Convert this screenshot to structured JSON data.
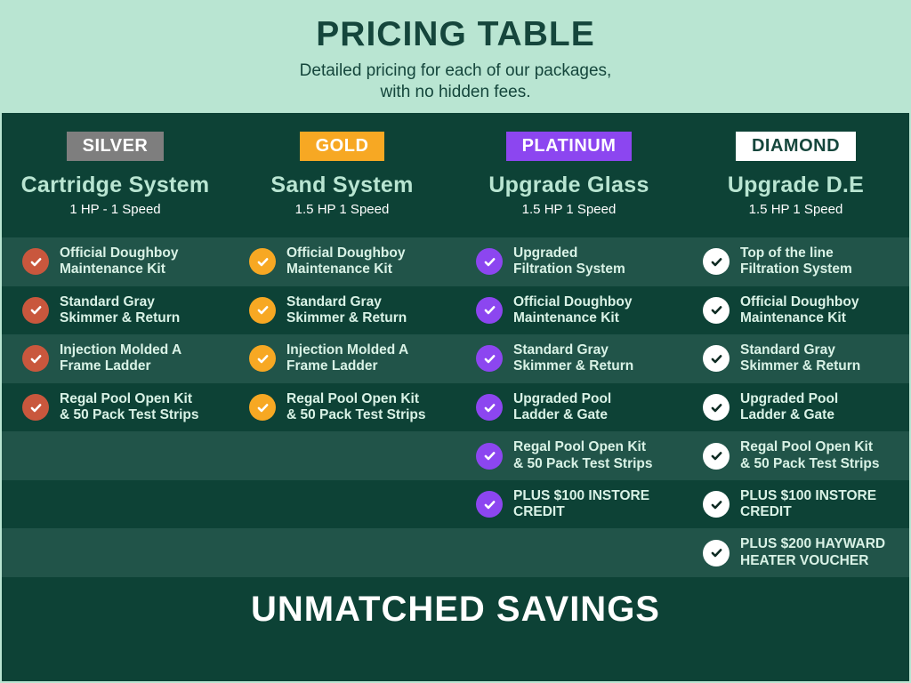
{
  "header": {
    "title": "PRICING TABLE",
    "subtitle": "Detailed pricing for each of our packages,\nwith no hidden fees."
  },
  "colors": {
    "mint": "#b9e5d2",
    "panel": "#0d4236",
    "stripe": "#215449",
    "heading": "#15463c",
    "feature-text": "#d9f2e6"
  },
  "columns": [
    {
      "badge": "SILVER",
      "badge_bg": "#7e7e7e",
      "badge_color": "#ffffff",
      "title": "Cartridge System",
      "subtitle": "1 HP - 1 Speed",
      "check_bg": "#c9573d",
      "check_color": "#ffffff"
    },
    {
      "badge": "GOLD",
      "badge_bg": "#f7a823",
      "badge_color": "#ffffff",
      "title": "Sand System",
      "subtitle": "1.5 HP 1 Speed",
      "check_bg": "#f7a823",
      "check_color": "#ffffff"
    },
    {
      "badge": "PLATINUM",
      "badge_bg": "#8c46f0",
      "badge_color": "#ffffff",
      "title": "Upgrade Glass",
      "subtitle": "1.5 HP 1 Speed",
      "check_bg": "#8c46f0",
      "check_color": "#ffffff"
    },
    {
      "badge": "DIAMOND",
      "badge_bg": "#ffffff",
      "badge_color": "#15463c",
      "title": "Upgrade D.E",
      "subtitle": "1.5 HP 1 Speed",
      "check_bg": "#ffffff",
      "check_color": "#0d2a22"
    }
  ],
  "rows": [
    {
      "cells": [
        "Official Doughboy\nMaintenance Kit",
        "Official Doughboy\nMaintenance Kit",
        "Upgraded\nFiltration System",
        "Top of the line\nFiltration System"
      ]
    },
    {
      "cells": [
        "Standard Gray\nSkimmer & Return",
        "Standard Gray\nSkimmer & Return",
        "Official Doughboy\nMaintenance Kit",
        "Official Doughboy\nMaintenance Kit"
      ]
    },
    {
      "cells": [
        "Injection Molded A\nFrame Ladder",
        "Injection Molded A\nFrame Ladder",
        "Standard Gray\nSkimmer & Return",
        "Standard Gray\nSkimmer & Return"
      ]
    },
    {
      "cells": [
        "Regal Pool Open Kit\n& 50 Pack Test Strips",
        "Regal Pool Open Kit\n& 50 Pack Test Strips",
        "Upgraded Pool\nLadder & Gate",
        "Upgraded Pool\nLadder & Gate"
      ]
    },
    {
      "cells": [
        null,
        null,
        "Regal Pool Open Kit\n& 50 Pack Test Strips",
        "Regal Pool Open Kit\n& 50 Pack Test Strips"
      ]
    },
    {
      "cells": [
        null,
        null,
        "PLUS $100 INSTORE\nCREDIT",
        "PLUS $100 INSTORE\nCREDIT"
      ]
    },
    {
      "cells": [
        null,
        null,
        null,
        "PLUS $200 HAYWARD\nHEATER VOUCHER"
      ]
    }
  ],
  "footer": {
    "title": "UNMATCHED SAVINGS"
  }
}
